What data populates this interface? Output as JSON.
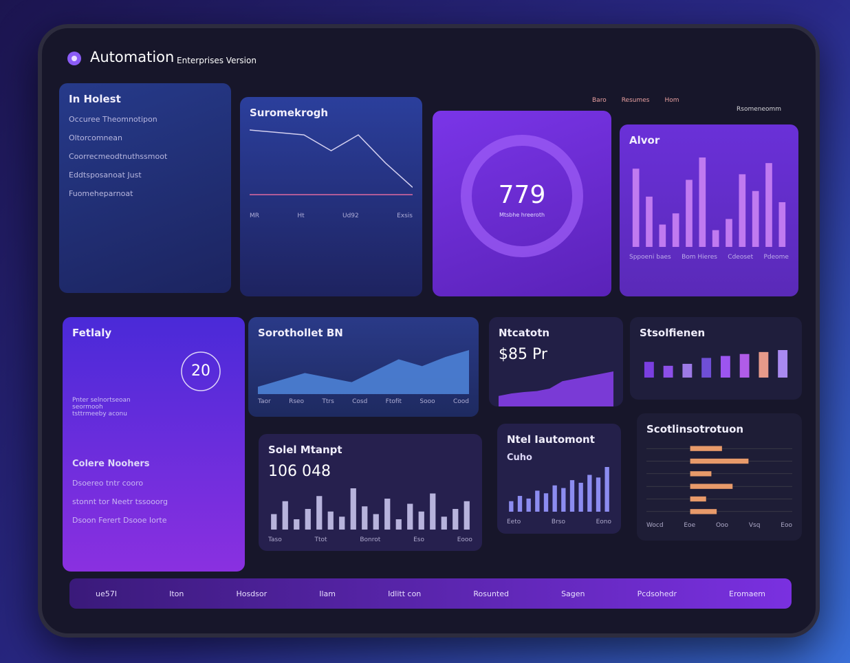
{
  "header": {
    "title": "Automation",
    "subtitle": "Enterprises Version",
    "nav": [
      "Baro",
      "Resumes",
      "Hom"
    ],
    "account": "Rsomeneomm"
  },
  "cards": [
    {
      "title": "In Holest",
      "items": [
        "Occuree Theomnotipon",
        "Oltorcomnean",
        "Coorrecmeodtnuthssmoot",
        "Eddtsposanoat Just",
        "Fuomeheparnoat"
      ]
    },
    {
      "title": "Suromekrogh",
      "chart": {
        "type": "line",
        "values": [
          62,
          60,
          58,
          45,
          58,
          35,
          15
        ],
        "color": "#d4d0f0"
      },
      "footer": [
        "MR",
        "Ht",
        "Ud92",
        "Exsis"
      ]
    },
    {
      "value": 779,
      "caption": "Mtsbhe hreeroth"
    },
    {
      "title": "Alvor",
      "chart": {
        "type": "bar",
        "values": [
          70,
          45,
          20,
          30,
          60,
          80,
          15,
          25,
          65,
          50,
          75,
          40
        ],
        "color": "#c07af0"
      },
      "footer": [
        "Sppoeni baes",
        "Bom Hieres",
        "Cdeoset",
        "Pdeome"
      ]
    },
    {
      "title": "Fetlaly",
      "value": 20,
      "lines": [
        "Pnter selnortseoan",
        "seormooh",
        "tsttrmeeby aconu"
      ],
      "subtitle": "Colere Noohers",
      "items": [
        "Dsoereo tntr cooro",
        "stonnt tor Neetr tssooorg",
        "Dsoon Ferert Dsooe Iorte"
      ]
    },
    {
      "title": "Sorothollet BN",
      "chart": {
        "type": "area",
        "values": [
          10,
          25,
          40,
          30,
          20,
          45,
          70,
          55,
          75,
          90
        ],
        "color": "#4f86dc"
      },
      "footer": [
        "Taor",
        "Rseo",
        "Ttrs",
        "Cosd",
        "Ftofit",
        "Sooo",
        "Cood"
      ]
    },
    {
      "title": "Ntcatotn",
      "value_text": "$85 Pr",
      "chart": {
        "type": "area",
        "values": [
          20,
          25,
          28,
          30,
          35,
          50,
          55,
          60,
          65,
          70
        ],
        "color": "#8a3ff0"
      }
    },
    {
      "title": "Stsolfienen",
      "chart": {
        "type": "bar",
        "values": [
          40,
          30,
          35,
          50,
          55,
          60,
          65,
          70
        ],
        "colors": [
          "#7a3fe0",
          "#8c4fe8",
          "#9d7ae6",
          "#6f4fd6",
          "#9c55f0",
          "#b05ce8",
          "#e69a8a",
          "#a98af0"
        ]
      }
    },
    {
      "title": "Solel Mtanpt",
      "value_text": "106 048",
      "chart": {
        "type": "bar",
        "values": [
          30,
          55,
          20,
          40,
          65,
          35,
          25,
          80,
          45,
          30,
          60,
          20,
          50,
          35,
          70,
          25,
          40,
          55
        ],
        "color": "#b7b3dc"
      },
      "footer": [
        "Taso",
        "Ttot",
        "Bonrot",
        "Eso",
        "Eooo"
      ]
    },
    {
      "title": "Ntel Iautomont",
      "subtitle": "Cuho",
      "chart": {
        "type": "bar",
        "values": [
          20,
          30,
          25,
          40,
          35,
          50,
          45,
          60,
          55,
          70,
          65,
          85
        ],
        "color": "#8c8cf0"
      },
      "footer": [
        "Eeto",
        "Brso",
        "Eono"
      ]
    },
    {
      "title": "Scotlinsotrotuon",
      "chart": {
        "type": "hbar",
        "values": [
          30,
          55,
          20,
          40,
          15,
          25
        ],
        "color": "#e89a6a"
      },
      "footer": [
        "Wocd",
        "Eoe",
        "Ooo",
        "Vsq",
        "Eoo"
      ]
    }
  ],
  "footer": [
    "ue57I",
    "Iton",
    "Hosdsor",
    "Ilam",
    "Idlitt con",
    "Rosunted",
    "Sagen",
    "Pcdsohedr",
    "Eromaem"
  ]
}
